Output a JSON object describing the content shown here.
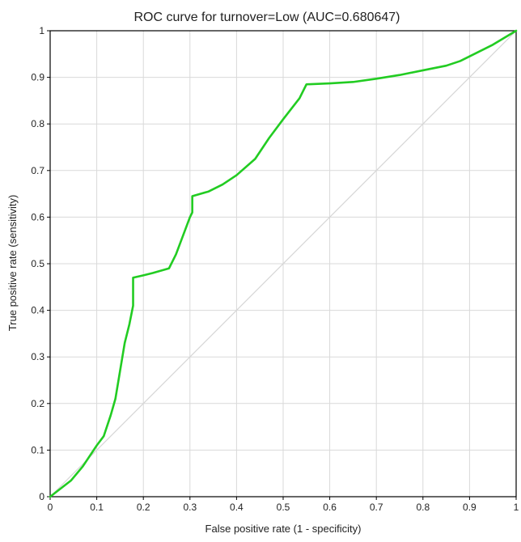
{
  "chart_data": {
    "type": "line",
    "title": "ROC curve for turnover=Low (AUC=0.680647)",
    "xlabel": "False positive rate (1 - specificity)",
    "ylabel": "True positive rate (sensitivity)",
    "xlim": [
      0,
      1
    ],
    "ylim": [
      0,
      1
    ],
    "xticks": [
      "0",
      "0.1",
      "0.2",
      "0.3",
      "0.4",
      "0.5",
      "0.6",
      "0.7",
      "0.8",
      "0.9",
      "1"
    ],
    "yticks": [
      "0",
      "0.1",
      "0.2",
      "0.3",
      "0.4",
      "0.5",
      "0.6",
      "0.7",
      "0.8",
      "0.9",
      "1"
    ],
    "grid": true,
    "legend": "none",
    "colors": {
      "roc": "#22cc22",
      "diagonal": "#d6d6d6",
      "grid": "#d9d9d9",
      "axis": "#000000"
    },
    "series": [
      {
        "values": [
          [
            0,
            0
          ],
          [
            0.045,
            0.035
          ],
          [
            0.07,
            0.065
          ],
          [
            0.1,
            0.11
          ],
          [
            0.115,
            0.13
          ],
          [
            0.13,
            0.175
          ],
          [
            0.14,
            0.21
          ],
          [
            0.15,
            0.27
          ],
          [
            0.16,
            0.33
          ],
          [
            0.17,
            0.37
          ],
          [
            0.178,
            0.41
          ],
          [
            0.178,
            0.47
          ],
          [
            0.2,
            0.475
          ],
          [
            0.22,
            0.48
          ],
          [
            0.255,
            0.49
          ],
          [
            0.27,
            0.52
          ],
          [
            0.3,
            0.6
          ],
          [
            0.305,
            0.61
          ],
          [
            0.305,
            0.645
          ],
          [
            0.34,
            0.655
          ],
          [
            0.37,
            0.67
          ],
          [
            0.4,
            0.69
          ],
          [
            0.44,
            0.725
          ],
          [
            0.47,
            0.77
          ],
          [
            0.5,
            0.81
          ],
          [
            0.535,
            0.855
          ],
          [
            0.55,
            0.885
          ],
          [
            0.6,
            0.887
          ],
          [
            0.65,
            0.89
          ],
          [
            0.7,
            0.897
          ],
          [
            0.75,
            0.905
          ],
          [
            0.8,
            0.915
          ],
          [
            0.85,
            0.925
          ],
          [
            0.88,
            0.935
          ],
          [
            0.91,
            0.95
          ],
          [
            0.95,
            0.97
          ],
          [
            1,
            1
          ]
        ]
      },
      {
        "values": [
          [
            0,
            0
          ],
          [
            1,
            1
          ]
        ]
      }
    ]
  }
}
